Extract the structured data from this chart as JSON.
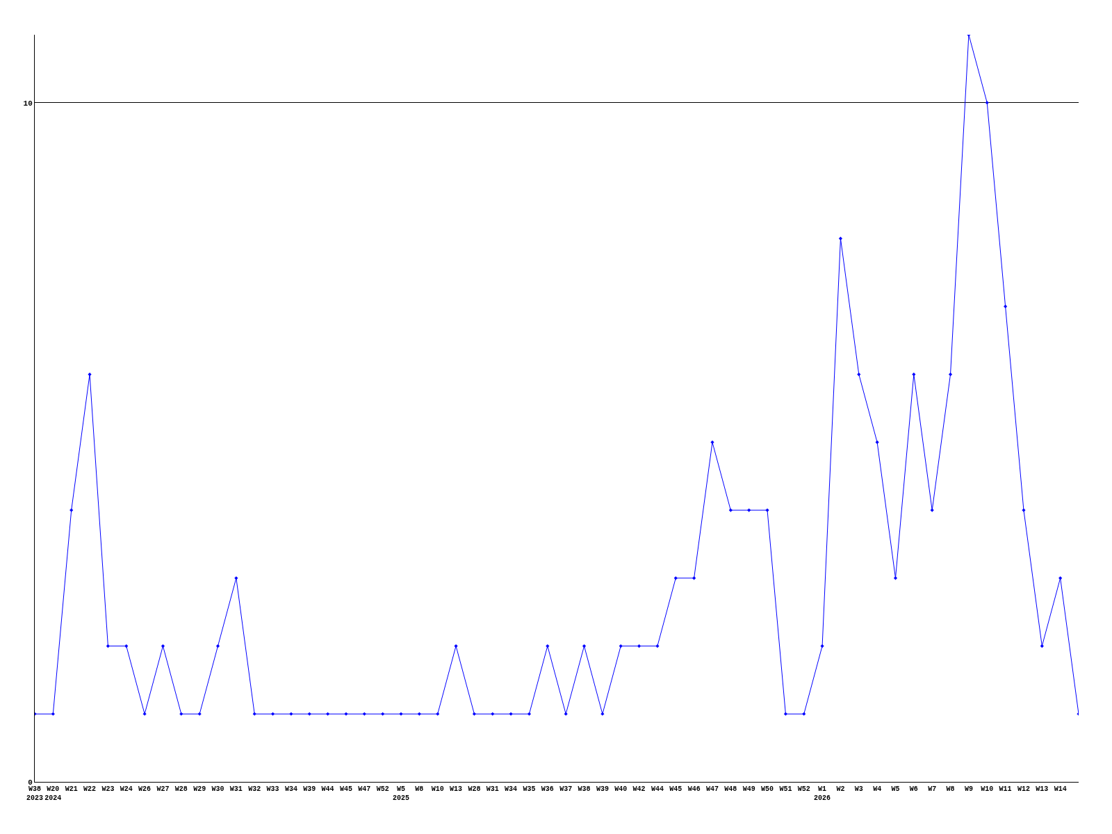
{
  "chart_data": {
    "type": "line",
    "categories": [
      "W38\n2023",
      "W20\n2024",
      "W21",
      "W22",
      "W23",
      "W24",
      "W26",
      "W27",
      "W28",
      "W29",
      "W30",
      "W31",
      "W32",
      "W33",
      "W34",
      "W39",
      "W44",
      "W45",
      "W47",
      "W52",
      "W5\n2025",
      "W8",
      "W10",
      "W13",
      "W28",
      "W31",
      "W34",
      "W35",
      "W36",
      "W37",
      "W38",
      "W39",
      "W40",
      "W42",
      "W44",
      "W45",
      "W46",
      "W47",
      "W48",
      "W49",
      "W50",
      "W51",
      "W52",
      "W1\n2026",
      "W2",
      "W3",
      "W4",
      "W5",
      "W6",
      "W7",
      "W8",
      "W9",
      "W10",
      "W11",
      "W12",
      "W13",
      "W14",
      null
    ],
    "series": [
      {
        "color": "#0000ff",
        "values": [
          1,
          1,
          4,
          6,
          2,
          2,
          1,
          2,
          1,
          1,
          2,
          3,
          1,
          1,
          1,
          1,
          1,
          1,
          1,
          1,
          1,
          1,
          1,
          2,
          1,
          1,
          1,
          1,
          2,
          1,
          2,
          1,
          2,
          2,
          2,
          3,
          3,
          5,
          4,
          4,
          4,
          1,
          1,
          2,
          8,
          6,
          5,
          3,
          6,
          4,
          6,
          11,
          10,
          7,
          4,
          2,
          3,
          1
        ]
      }
    ],
    "ylim": [
      0,
      11
    ],
    "yticks": [
      0,
      10
    ],
    "grid": "y",
    "marker": "diamond",
    "line_style": "solid",
    "legend": false
  }
}
